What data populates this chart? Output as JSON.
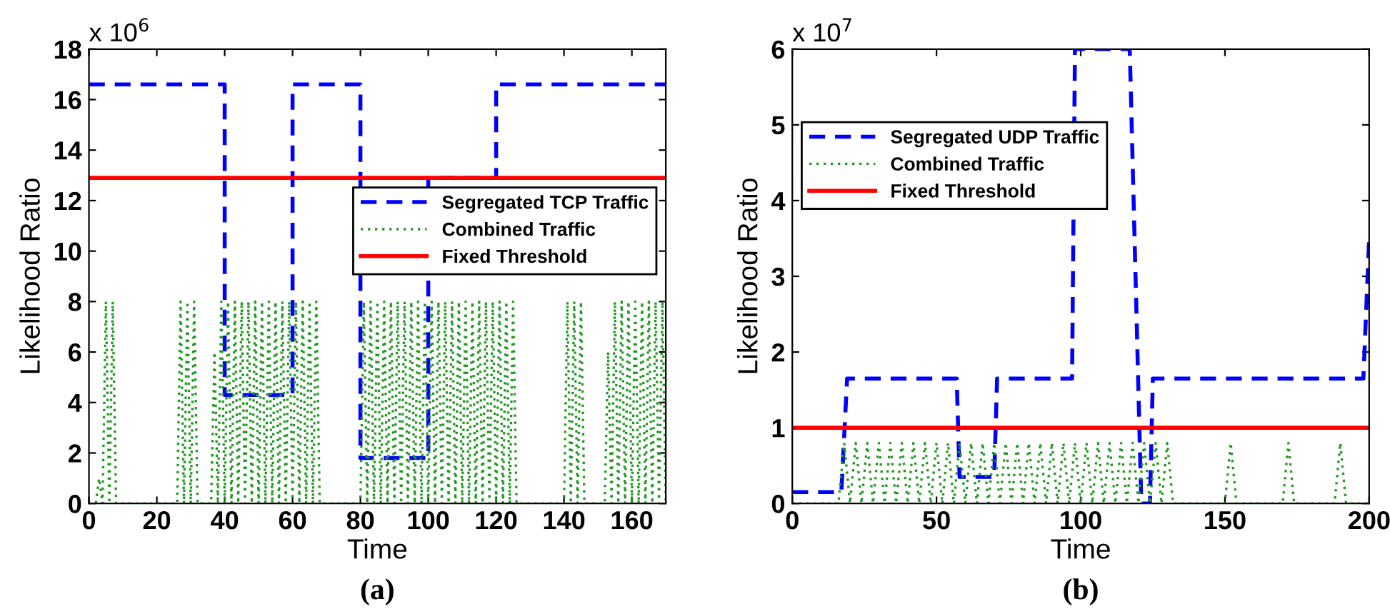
{
  "chart_data": [
    {
      "type": "line",
      "xlabel": "Time",
      "ylabel": "Likelihood Ratio",
      "annotations": [
        "x 10$^{6}$",
        "(a)"
      ],
      "xlim": [
        0,
        170
      ],
      "xticks": [
        0,
        20,
        40,
        60,
        80,
        100,
        120,
        140,
        160
      ],
      "ylim": [
        0,
        18
      ],
      "yticks": [
        0,
        2,
        4,
        6,
        8,
        10,
        12,
        14,
        16,
        18
      ],
      "grid": false,
      "legend": "right",
      "series": [
        {
          "name": "Segregated TCP Traffic",
          "color": "#0000ff",
          "line_style": "dashed",
          "x": [
            0,
            40,
            40,
            60,
            60,
            80,
            80,
            100,
            100,
            120,
            120,
            170
          ],
          "values": [
            16.6,
            16.6,
            4.3,
            4.3,
            16.6,
            16.6,
            1.8,
            1.8,
            12.9,
            12.9,
            16.6,
            16.6
          ]
        },
        {
          "name": "Combined Traffic",
          "color": "#229922",
          "line_style": "dotted",
          "x": [
            0,
            2,
            3,
            4,
            5,
            6,
            7,
            8,
            26,
            27,
            28,
            29,
            30,
            31,
            32,
            36,
            37,
            38,
            39,
            40,
            41,
            42,
            43,
            44,
            45,
            46,
            47,
            48,
            49,
            50,
            51,
            52,
            53,
            54,
            55,
            56,
            57,
            58,
            59,
            60,
            61,
            62,
            63,
            64,
            65,
            66,
            67,
            68,
            80,
            81,
            82,
            83,
            84,
            85,
            86,
            87,
            88,
            89,
            90,
            91,
            92,
            93,
            94,
            95,
            96,
            97,
            98,
            99,
            100,
            101,
            102,
            103,
            104,
            105,
            106,
            107,
            108,
            109,
            110,
            111,
            112,
            113,
            114,
            115,
            116,
            117,
            118,
            119,
            120,
            121,
            122,
            123,
            124,
            125,
            126,
            140,
            141,
            142,
            143,
            144,
            145,
            146,
            152,
            153,
            154,
            155,
            156,
            157,
            158,
            159,
            160,
            161,
            162,
            163,
            164,
            165,
            166,
            167,
            168,
            169,
            170
          ],
          "values": [
            0,
            0,
            1,
            0,
            8,
            0,
            8,
            0,
            0,
            8,
            0,
            8,
            0,
            8,
            0,
            0,
            6,
            0,
            8,
            0,
            8,
            0,
            8,
            0,
            8,
            0,
            8,
            0,
            8,
            0,
            8,
            0,
            8,
            0,
            8,
            0,
            8,
            0,
            8,
            0,
            8,
            0,
            8,
            0,
            8,
            0,
            8,
            0,
            0,
            8,
            0,
            8,
            0,
            8,
            0,
            8,
            0,
            8,
            0,
            8,
            0,
            8,
            0,
            8,
            0,
            8,
            0,
            8,
            0,
            8,
            0,
            8,
            0,
            8,
            0,
            8,
            0,
            8,
            0,
            8,
            0,
            8,
            0,
            8,
            0,
            8,
            0,
            8,
            0,
            8,
            0,
            8,
            0,
            8,
            0,
            0,
            8,
            0,
            8,
            0,
            8,
            0,
            0,
            6,
            0,
            8,
            0,
            8,
            0,
            8,
            0,
            8,
            0,
            8,
            0,
            8,
            0,
            8,
            0,
            8,
            0
          ]
        }
      ],
      "ref_lines": [
        {
          "axis": "y",
          "value": 12.9,
          "label": "Fixed Threshold",
          "color": "#ff0000",
          "line_style": "solid"
        }
      ]
    },
    {
      "type": "line",
      "xlabel": "Time",
      "ylabel": "Likelihood Ratio",
      "annotations": [
        "x 10$^{7}$",
        "(b)"
      ],
      "xlim": [
        0,
        200
      ],
      "xticks": [
        0,
        50,
        100,
        150,
        200
      ],
      "ylim": [
        0,
        6
      ],
      "yticks": [
        0,
        1,
        2,
        3,
        4,
        5,
        6
      ],
      "grid": false,
      "legend": "top left",
      "series": [
        {
          "name": "Segregated UDP Traffic",
          "color": "#0000ff",
          "line_style": "dashed",
          "x": [
            0,
            17,
            19,
            57,
            58,
            70,
            71,
            97,
            98,
            117,
            121,
            124,
            125,
            198,
            200
          ],
          "values": [
            0.15,
            0.15,
            1.65,
            1.65,
            0.35,
            0.35,
            1.65,
            1.65,
            6,
            6,
            0,
            0,
            1.65,
            1.65,
            3.5
          ]
        },
        {
          "name": "Combined Traffic",
          "color": "#229922",
          "line_style": "dotted",
          "x": [
            0,
            16,
            18,
            20,
            22,
            24,
            26,
            28,
            30,
            32,
            34,
            36,
            38,
            40,
            42,
            44,
            46,
            48,
            50,
            52,
            54,
            56,
            58,
            60,
            62,
            64,
            66,
            68,
            70,
            72,
            74,
            76,
            78,
            80,
            82,
            84,
            86,
            88,
            90,
            92,
            94,
            96,
            98,
            100,
            102,
            104,
            106,
            108,
            110,
            112,
            114,
            116,
            118,
            120,
            122,
            124,
            126,
            128,
            130,
            132,
            150,
            152,
            154,
            170,
            172,
            174,
            188,
            190,
            192,
            200
          ],
          "values": [
            0,
            0,
            0.8,
            0,
            0.8,
            0,
            0.8,
            0,
            0.8,
            0,
            0.8,
            0,
            0.8,
            0,
            0.8,
            0,
            0.8,
            0,
            0.8,
            0,
            0.8,
            0,
            0.8,
            0,
            0.8,
            0,
            0.8,
            0,
            0.8,
            0,
            0.8,
            0,
            0.8,
            0,
            0.8,
            0,
            0.8,
            0,
            0.8,
            0,
            0.8,
            0,
            0.8,
            0,
            0.8,
            0,
            0.8,
            0,
            0.8,
            0,
            0.8,
            0,
            0.8,
            0,
            0.8,
            0,
            0.8,
            0,
            0.8,
            0,
            0,
            0.8,
            0,
            0,
            0.8,
            0,
            0,
            0.8,
            0,
            0
          ]
        }
      ],
      "ref_lines": [
        {
          "axis": "y",
          "value": 1,
          "label": "Fixed Threshold",
          "color": "#ff0000",
          "line_style": "solid"
        }
      ]
    }
  ]
}
